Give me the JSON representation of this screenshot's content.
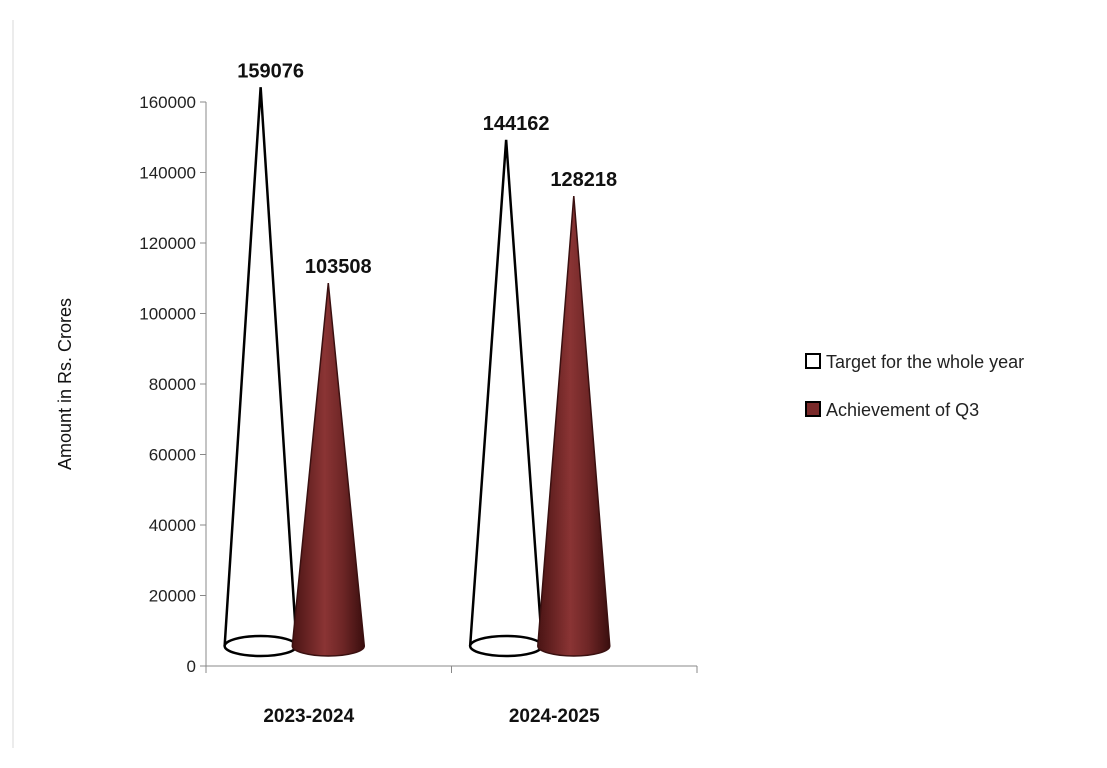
{
  "chart_data": {
    "type": "bar",
    "bar_shape": "cone",
    "categories": [
      "2023-2024",
      "2024-2025"
    ],
    "series": [
      {
        "name": "Target for the whole year",
        "values": [
          159076,
          144162
        ],
        "color": "#ffffff",
        "stroke": "#000000"
      },
      {
        "name": "Achievement of Q3",
        "values": [
          103508,
          128218
        ],
        "color": "#7a2a2a",
        "stroke": "#3a1010"
      }
    ],
    "data_labels": [
      [
        "159076",
        "144162"
      ],
      [
        "103508",
        "128218"
      ]
    ],
    "title": "",
    "xlabel": "",
    "ylabel": "Amount in Rs. Crores",
    "ylim": [
      0,
      160000
    ],
    "yticks": [
      0,
      20000,
      40000,
      60000,
      80000,
      100000,
      120000,
      140000,
      160000
    ],
    "ytick_labels": [
      "0",
      "20000",
      "40000",
      "60000",
      "80000",
      "100000",
      "120000",
      "140000",
      "160000"
    ],
    "grid": false,
    "legend_position": "right"
  }
}
